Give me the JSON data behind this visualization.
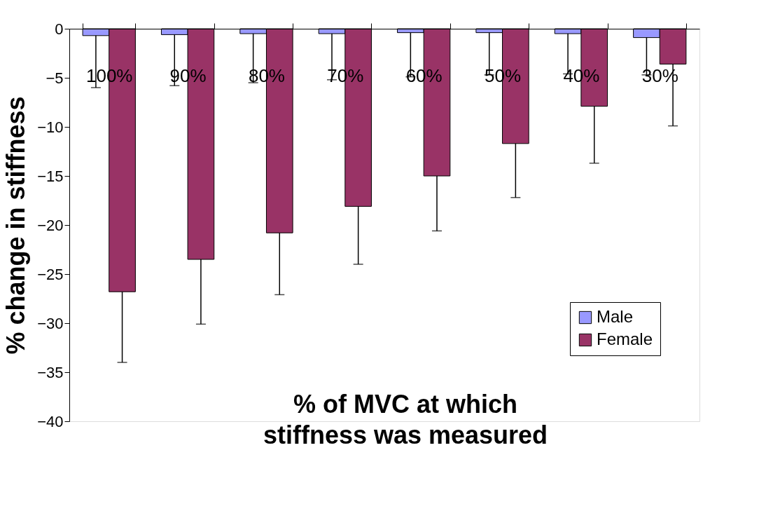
{
  "chart_data": {
    "type": "bar",
    "xlabel": "% of MVC at which stiffness was measured",
    "ylabel": "% change in stiffness",
    "categories": [
      "100%",
      "90%",
      "80%",
      "70%",
      "60%",
      "50%",
      "40%",
      "30%"
    ],
    "series": [
      {
        "name": "Male",
        "color": "#9999ff",
        "values": [
          -0.7,
          -0.6,
          -0.5,
          -0.5,
          -0.4,
          -0.4,
          -0.5,
          -0.9
        ],
        "errors": [
          [
            -6.0,
            -0.7
          ],
          [
            -5.8,
            -0.6
          ],
          [
            -5.5,
            -0.5
          ],
          [
            -5.2,
            -0.5
          ],
          [
            -4.9,
            -0.4
          ],
          [
            -4.7,
            -0.4
          ],
          [
            -4.6,
            -0.5
          ],
          [
            -4.7,
            -0.9
          ]
        ]
      },
      {
        "name": "Female",
        "color": "#993366",
        "values": [
          -26.8,
          -23.5,
          -20.8,
          -18.1,
          -15.0,
          -11.7,
          -7.9,
          -3.6
        ],
        "errors": [
          [
            -34.0,
            -26.8
          ],
          [
            -30.1,
            -23.5
          ],
          [
            -27.1,
            -20.8
          ],
          [
            -24.0,
            -18.1
          ],
          [
            -20.6,
            -15.0
          ],
          [
            -17.2,
            -11.7
          ],
          [
            -13.7,
            -7.9
          ],
          [
            -9.9,
            -3.6
          ]
        ]
      }
    ],
    "ylim": [
      -40,
      0
    ],
    "yticks": [
      -40,
      -35,
      -30,
      -25,
      -20,
      -15,
      -10,
      -5,
      0
    ],
    "grid": false,
    "legend": "right"
  }
}
